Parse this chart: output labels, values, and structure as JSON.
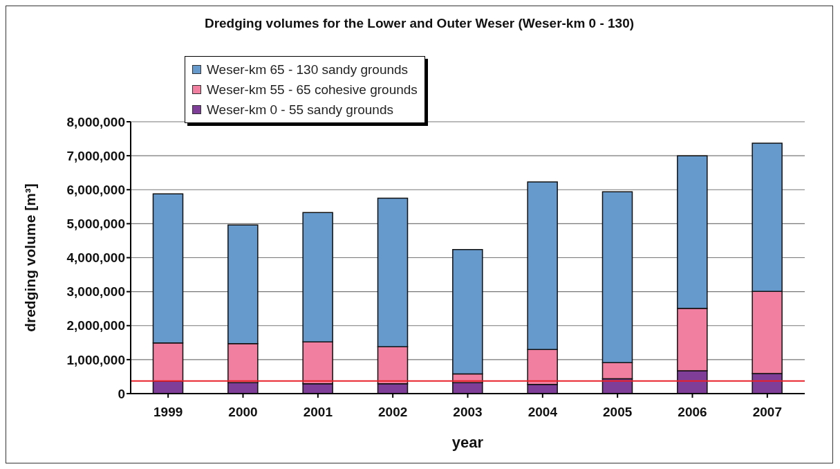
{
  "chart_data": {
    "type": "bar",
    "title": "Dredging volumes for the Lower and Outer Weser (Weser-km 0 - 130)",
    "xlabel": "year",
    "ylabel": "dredging volume [m³]",
    "categories": [
      "1999",
      "2000",
      "2001",
      "2002",
      "2003",
      "2004",
      "2005",
      "2006",
      "2007"
    ],
    "stacked": true,
    "series": [
      {
        "name": "Weser-km 0 - 55 sandy grounds",
        "color": "#7f3f98",
        "values": [
          370000,
          320000,
          290000,
          290000,
          320000,
          270000,
          440000,
          670000,
          590000
        ]
      },
      {
        "name": "Weser-km 55 - 65 cohesive grounds",
        "color": "#f07fa0",
        "values": [
          1120000,
          1150000,
          1230000,
          1090000,
          260000,
          1030000,
          470000,
          1840000,
          2420000
        ]
      },
      {
        "name": "Weser-km 65 - 130 sandy grounds",
        "color": "#6699cc",
        "values": [
          4390000,
          3490000,
          3810000,
          4370000,
          3660000,
          4930000,
          5030000,
          4490000,
          4360000
        ]
      }
    ],
    "ylim": [
      0,
      8000000
    ],
    "yticks": [
      {
        "value": 0,
        "label": "0"
      },
      {
        "value": 1000000,
        "label": "1,000,000"
      },
      {
        "value": 2000000,
        "label": "2,000,000"
      },
      {
        "value": 3000000,
        "label": "3,000,000"
      },
      {
        "value": 4000000,
        "label": "4,000,000"
      },
      {
        "value": 5000000,
        "label": "5,000,000"
      },
      {
        "value": 6000000,
        "label": "6,000,000"
      },
      {
        "value": 7000000,
        "label": "7,000,000"
      },
      {
        "value": 8000000,
        "label": "8,000,000"
      }
    ],
    "grid": "y",
    "legend": "top left",
    "ref_lines": [
      {
        "axis": "y",
        "value": 370000,
        "color": "#e8202a"
      }
    ]
  }
}
